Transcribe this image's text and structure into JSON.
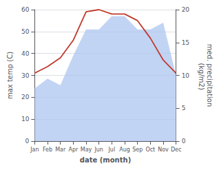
{
  "chart_data": {
    "type": "line",
    "categories": [
      "Jan",
      "Feb",
      "Mar",
      "Apr",
      "May",
      "Jun",
      "Jul",
      "Aug",
      "Sep",
      "Oct",
      "Nov",
      "Dec"
    ],
    "xlabel": "date (month)",
    "ylabel": "max temp (C)",
    "y2label": "med. precipitation\n (kg/m2)",
    "series": [
      {
        "type": "area",
        "color": "#aec6f0",
        "values": [
          24,
          28.5,
          25.5,
          39,
          51,
          51,
          57,
          57,
          51,
          51,
          54,
          30
        ]
      },
      {
        "type": "line",
        "color": "#c0392b",
        "values": [
          31,
          34,
          38,
          46,
          59,
          60,
          58,
          58,
          55,
          47,
          37,
          31
        ]
      }
    ],
    "ylim": [
      0,
      60
    ],
    "yticks": [
      0,
      10,
      20,
      30,
      40,
      50,
      60
    ],
    "y2lim": [
      0,
      20
    ],
    "y2ticks": [
      0,
      5,
      10,
      15,
      20
    ],
    "grid": true
  }
}
